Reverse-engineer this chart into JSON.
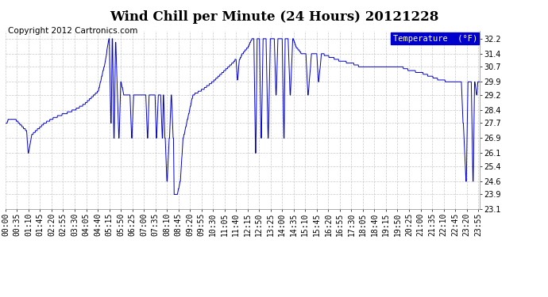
{
  "title": "Wind Chill per Minute (24 Hours) 20121228",
  "copyright": "Copyright 2012 Cartronics.com",
  "legend_label": "Temperature  (°F)",
  "yticks": [
    23.1,
    23.9,
    24.6,
    25.4,
    26.1,
    26.9,
    27.7,
    28.4,
    29.2,
    29.9,
    30.7,
    31.4,
    32.2
  ],
  "ymin": 23.1,
  "ymax": 32.6,
  "line_color": "#0000cc",
  "bg_color": "#ffffff",
  "plot_bg_color": "#ffffff",
  "grid_color": "#bbbbbb",
  "title_fontsize": 12,
  "copyright_fontsize": 7.5,
  "legend_bg": "#0000cc",
  "legend_text_color": "#ffffff",
  "tick_label_fontsize": 7
}
